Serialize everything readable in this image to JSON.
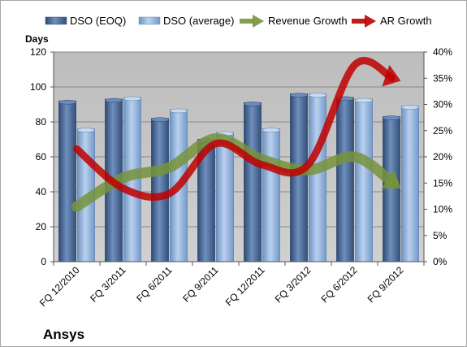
{
  "chart_data": {
    "type": "bar",
    "company": "Ansys",
    "categories": [
      "FQ 12/2010",
      "FQ 3/2011",
      "FQ 6/2011",
      "FQ 9/2011",
      "FQ 12/2011",
      "FQ 3/2012",
      "FQ 6/2012",
      "FQ 9/2012"
    ],
    "series": [
      {
        "name": "DSO (EOQ)",
        "axis": "left",
        "kind": "bar",
        "values": [
          92,
          93,
          82,
          70,
          91,
          96,
          94,
          83
        ]
      },
      {
        "name": "DSO (average)",
        "axis": "left",
        "kind": "bar",
        "values": [
          76,
          94,
          87,
          74,
          76,
          96,
          93,
          89
        ]
      },
      {
        "name": "Revenue Growth",
        "axis": "right",
        "kind": "arrow-line",
        "values": [
          0.105,
          0.16,
          0.18,
          0.235,
          0.195,
          0.175,
          0.2,
          0.14
        ]
      },
      {
        "name": "AR Growth",
        "axis": "right",
        "kind": "arrow-line",
        "values": [
          0.215,
          0.14,
          0.13,
          0.225,
          0.185,
          0.185,
          0.375,
          0.345
        ]
      }
    ],
    "ylabel": "Days",
    "ylim": [
      0,
      120
    ],
    "y_ticks": [
      "0",
      "20",
      "40",
      "60",
      "80",
      "100",
      "120"
    ],
    "y2lim": [
      0,
      0.4
    ],
    "y2_ticks": [
      "0%",
      "5%",
      "10%",
      "15%",
      "20%",
      "25%",
      "30%",
      "35%",
      "40%"
    ],
    "grid": true,
    "legend_position": "top",
    "colors": {
      "dso_eoq": "#4a6a96",
      "dso_avg": "#8fb2dc",
      "revenue_growth": "#77933c",
      "ar_growth": "#c00000",
      "plot_bg": "#c0c0c0"
    }
  }
}
